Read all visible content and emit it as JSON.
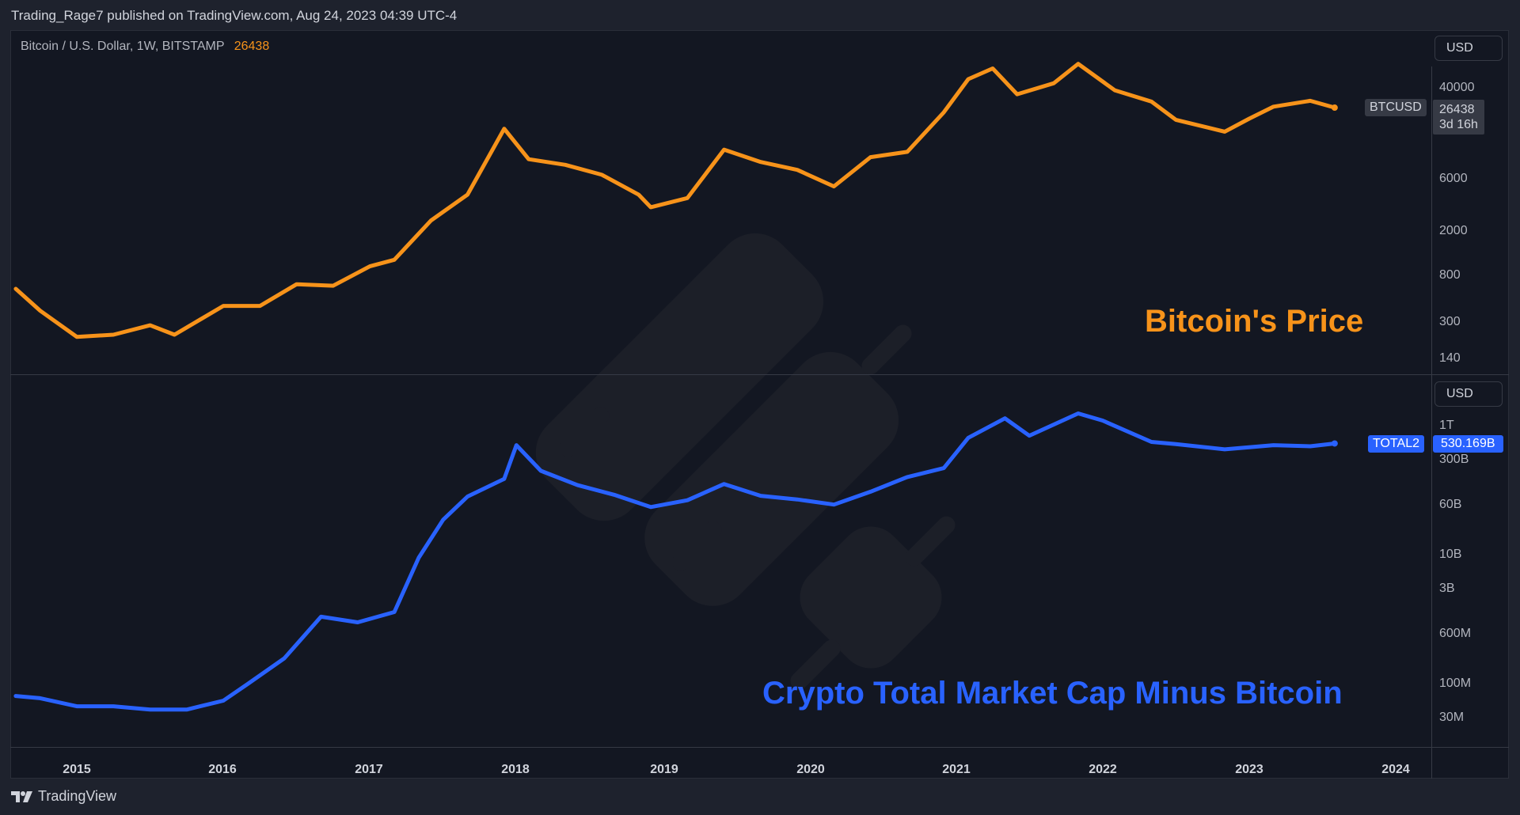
{
  "published": "Trading_Rage7 published on TradingView.com, Aug 24, 2023 04:39 UTC-4",
  "symbol_line": "Bitcoin / U.S. Dollar, 1W, BITSTAMP",
  "symbol_last": "26438",
  "currency": "USD",
  "logo_text": "TradingView",
  "colors": {
    "btc": "#f7931a",
    "total2": "#2962ff",
    "background": "#131722"
  },
  "chart_data": [
    {
      "type": "line",
      "series_name": "BTCUSD",
      "label": "Bitcoin's Price",
      "y_scale": "log",
      "y_ticks": [
        "40000",
        "6000",
        "2000",
        "800",
        "300",
        "140"
      ],
      "last_value": "26438",
      "countdown": "3d 16h",
      "x": [
        "2014-08",
        "2014-10",
        "2015-01",
        "2015-04",
        "2015-07",
        "2015-09",
        "2016-01",
        "2016-04",
        "2016-07",
        "2016-10",
        "2017-01",
        "2017-03",
        "2017-06",
        "2017-09",
        "2017-12",
        "2018-02",
        "2018-05",
        "2018-08",
        "2018-11",
        "2018-12",
        "2019-03",
        "2019-06",
        "2019-09",
        "2019-12",
        "2020-03",
        "2020-06",
        "2020-09",
        "2020-12",
        "2021-02",
        "2021-04",
        "2021-06",
        "2021-09",
        "2021-11",
        "2022-02",
        "2022-05",
        "2022-07",
        "2022-11",
        "2023-01",
        "2023-03",
        "2023-06",
        "2023-08"
      ],
      "values": [
        600,
        380,
        220,
        230,
        280,
        230,
        420,
        420,
        660,
        640,
        960,
        1100,
        2500,
        4300,
        17000,
        9000,
        8000,
        6500,
        4300,
        3300,
        4000,
        11000,
        8500,
        7200,
        5100,
        9400,
        10500,
        24000,
        48000,
        60000,
        35000,
        44000,
        66000,
        38000,
        30000,
        20500,
        16000,
        21000,
        27000,
        30500,
        26438
      ]
    },
    {
      "type": "line",
      "series_name": "TOTAL2",
      "label": "Crypto Total Market Cap Minus Bitcoin",
      "y_scale": "log",
      "y_ticks": [
        "1T",
        "300B",
        "60B",
        "10B",
        "3B",
        "600M",
        "100M",
        "30M"
      ],
      "last_value": "530.169B",
      "x": [
        "2014-08",
        "2014-10",
        "2015-01",
        "2015-04",
        "2015-07",
        "2015-10",
        "2016-01",
        "2016-03",
        "2016-06",
        "2016-09",
        "2016-12",
        "2017-03",
        "2017-05",
        "2017-07",
        "2017-09",
        "2017-12",
        "2018-01",
        "2018-03",
        "2018-06",
        "2018-09",
        "2018-12",
        "2019-03",
        "2019-06",
        "2019-09",
        "2019-12",
        "2020-03",
        "2020-06",
        "2020-09",
        "2020-12",
        "2021-02",
        "2021-05",
        "2021-07",
        "2021-11",
        "2022-01",
        "2022-05",
        "2022-07",
        "2022-11",
        "2023-03",
        "2023-06",
        "2023-08"
      ],
      "values": [
        0.065,
        0.06,
        0.045,
        0.045,
        0.04,
        0.04,
        0.055,
        0.1,
        0.25,
        1.1,
        0.9,
        1.3,
        9,
        35,
        80,
        150,
        500,
        200,
        120,
        85,
        55,
        70,
        125,
        82,
        72,
        60,
        95,
        160,
        220,
        650,
        1300,
        700,
        1550,
        1200,
        560,
        520,
        430,
        500,
        480,
        530.169
      ]
    }
  ],
  "x_ticks": [
    "2015",
    "2016",
    "2017",
    "2018",
    "2019",
    "2020",
    "2021",
    "2022",
    "2023",
    "2024"
  ]
}
